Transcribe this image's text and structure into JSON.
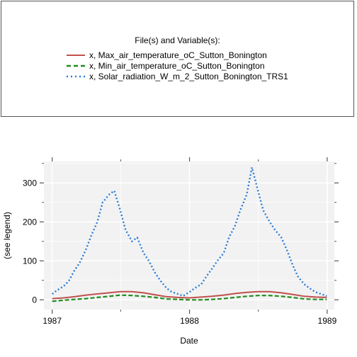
{
  "legend": {
    "title": "File(s) and Variable(s):",
    "entries": [
      {
        "label": "x, Max_air_temperature_oC_Sutton_Bonington",
        "color": "#c0504d",
        "style": "solid"
      },
      {
        "label": "x, Min_air_temperature_oC_Sutton_Bonington",
        "color": "#1e8c1e",
        "style": "dashed"
      },
      {
        "label": "x, Solar_radiation_W_m_2_Sutton_Bonington_TRS1",
        "color": "#2a7bd4",
        "style": "dotted"
      }
    ]
  },
  "chart_data": {
    "type": "line",
    "xlabel": "Date",
    "ylabel": "(see legend)",
    "x_ticks": [
      "1987",
      "1988",
      "1989"
    ],
    "y_ticks": [
      0,
      100,
      200,
      300
    ],
    "xlim": [
      "1986-12-10",
      "1989-01-20"
    ],
    "ylim": [
      -25,
      355
    ],
    "grid": true,
    "background": "#f2f2f2",
    "series": [
      {
        "name": "x, Max_air_temperature_oC_Sutton_Bonington",
        "color": "#c0504d",
        "x": [
          "1987-01-01",
          "1987-02-01",
          "1987-03-01",
          "1987-04-01",
          "1987-05-01",
          "1987-06-01",
          "1987-07-01",
          "1987-08-01",
          "1987-09-01",
          "1987-10-01",
          "1987-11-01",
          "1987-12-01",
          "1988-01-01",
          "1988-02-01",
          "1988-03-01",
          "1988-04-01",
          "1988-05-01",
          "1988-06-01",
          "1988-07-01",
          "1988-08-01",
          "1988-09-01",
          "1988-10-01",
          "1988-11-01",
          "1988-12-01",
          "1988-12-31"
        ],
        "values": [
          3,
          5,
          8,
          12,
          15,
          18,
          21,
          21,
          18,
          13,
          8,
          6,
          5,
          7,
          9,
          12,
          16,
          19,
          21,
          21,
          18,
          14,
          9,
          7,
          6
        ]
      },
      {
        "name": "x, Min_air_temperature_oC_Sutton_Bonington",
        "color": "#1e8c1e",
        "x": [
          "1987-01-01",
          "1987-02-01",
          "1987-03-01",
          "1987-04-01",
          "1987-05-01",
          "1987-06-01",
          "1987-07-01",
          "1987-08-01",
          "1987-09-01",
          "1987-10-01",
          "1987-11-01",
          "1987-12-01",
          "1988-01-01",
          "1988-02-01",
          "1988-03-01",
          "1988-04-01",
          "1988-05-01",
          "1988-06-01",
          "1988-07-01",
          "1988-08-01",
          "1988-09-01",
          "1988-10-01",
          "1988-11-01",
          "1988-12-01",
          "1988-12-31"
        ],
        "values": [
          -4,
          -1,
          1,
          3,
          6,
          9,
          12,
          11,
          9,
          6,
          2,
          1,
          0,
          0,
          1,
          3,
          6,
          9,
          11,
          11,
          9,
          6,
          2,
          1,
          1
        ]
      },
      {
        "name": "x, Solar_radiation_W_m_2_Sutton_Bonington_TRS1",
        "color": "#2a7bd4",
        "x": [
          "1987-01-01",
          "1987-01-15",
          "1987-02-01",
          "1987-02-15",
          "1987-03-01",
          "1987-03-15",
          "1987-04-01",
          "1987-04-15",
          "1987-05-01",
          "1987-05-15",
          "1987-06-01",
          "1987-06-15",
          "1987-07-01",
          "1987-07-15",
          "1987-08-01",
          "1987-08-15",
          "1987-09-01",
          "1987-09-15",
          "1987-10-01",
          "1987-10-15",
          "1987-11-01",
          "1987-11-15",
          "1987-12-01",
          "1987-12-15",
          "1988-01-01",
          "1988-01-15",
          "1988-02-01",
          "1988-02-15",
          "1988-03-01",
          "1988-03-15",
          "1988-04-01",
          "1988-04-15",
          "1988-05-01",
          "1988-05-15",
          "1988-06-01",
          "1988-06-15",
          "1988-07-01",
          "1988-07-15",
          "1988-08-01",
          "1988-08-15",
          "1988-09-01",
          "1988-09-15",
          "1988-10-01",
          "1988-10-15",
          "1988-11-01",
          "1988-11-15",
          "1988-12-01",
          "1988-12-15",
          "1988-12-31"
        ],
        "values": [
          15,
          25,
          35,
          50,
          75,
          95,
          130,
          165,
          200,
          250,
          270,
          280,
          230,
          180,
          150,
          160,
          120,
          100,
          70,
          50,
          30,
          20,
          15,
          10,
          20,
          30,
          40,
          60,
          80,
          100,
          120,
          160,
          190,
          230,
          270,
          340,
          280,
          230,
          200,
          180,
          160,
          130,
          90,
          60,
          40,
          30,
          20,
          15,
          10
        ]
      }
    ]
  }
}
